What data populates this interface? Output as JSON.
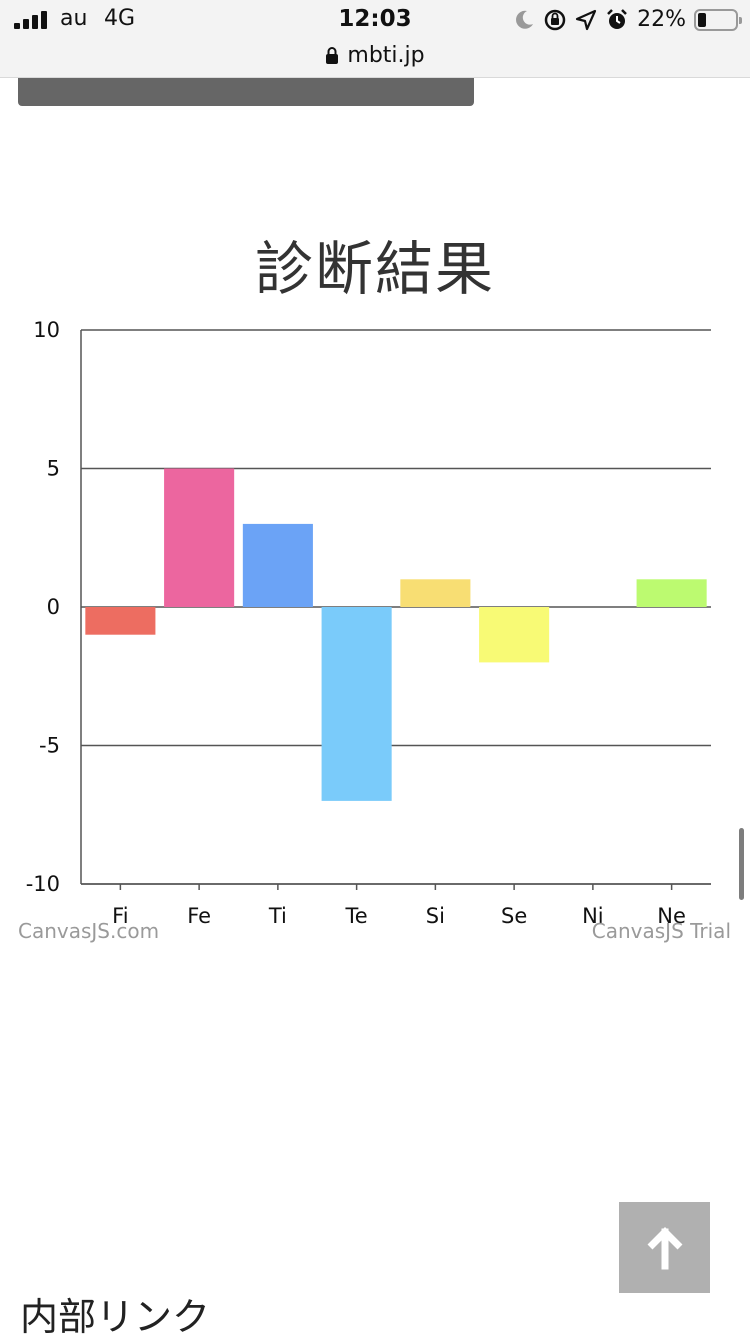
{
  "status_bar": {
    "carrier": "au",
    "network": "4G",
    "time": "12:03",
    "url": "mbti.jp",
    "battery_percent": "22%",
    "battery_level": 0.22,
    "icons": [
      "signal-icon",
      "moon-icon",
      "rotation-lock-icon",
      "location-arrow-icon",
      "alarm-icon",
      "battery-icon"
    ]
  },
  "chart_data": {
    "type": "bar",
    "title": "診断結果",
    "categories": [
      "Fi",
      "Fe",
      "Ti",
      "Te",
      "Si",
      "Se",
      "Ni",
      "Ne"
    ],
    "values": [
      -1,
      5,
      3,
      -7,
      1,
      -2,
      0,
      1
    ],
    "colors": [
      "#ED6D61",
      "#EC669F",
      "#6BA3F6",
      "#7ACBFA",
      "#F8DE73",
      "#F8FA75",
      "#CCCCCC",
      "#BCFA70"
    ],
    "ylim": [
      -10,
      10
    ],
    "yticks": [
      10,
      5,
      0,
      -5,
      -10
    ],
    "grid": true,
    "xlabel": "",
    "ylabel": ""
  },
  "watermarks": {
    "left": "CanvasJS.com",
    "right": "CanvasJS Trial"
  },
  "scroll_top_icon": "arrow-up-icon",
  "section_title": "内部リンク"
}
